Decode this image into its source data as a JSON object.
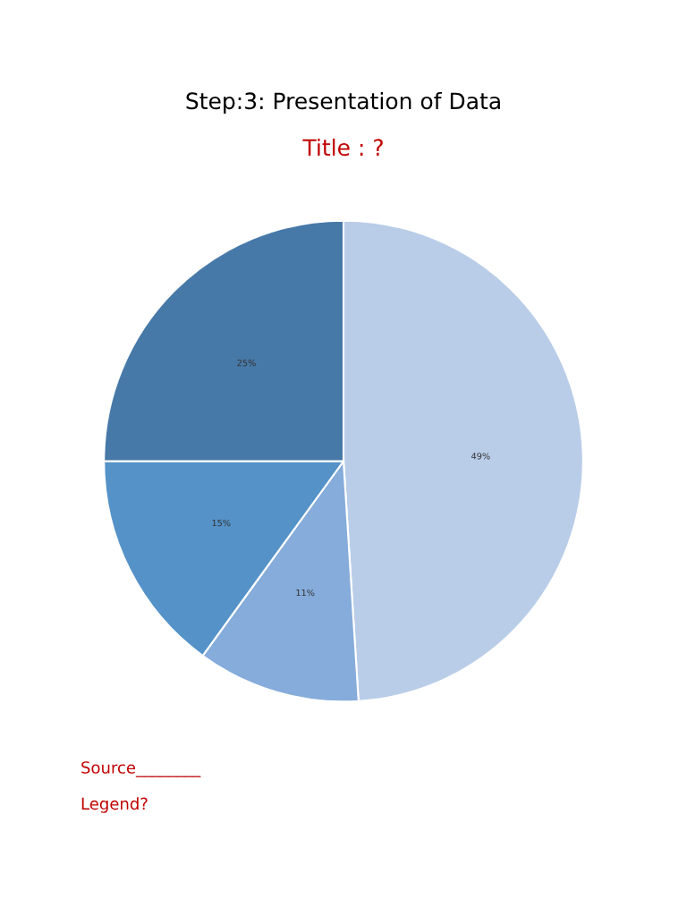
{
  "chart_data": {
    "type": "pie",
    "title": "Step:3: Presentation of Data",
    "subtitle": "Title : ?",
    "categories": [
      null,
      null,
      null,
      null
    ],
    "values": [
      49,
      11,
      15,
      25
    ],
    "colors": [
      "#b9cde8",
      "#85acda",
      "#5592c8",
      "#4779a8"
    ],
    "value_labels": [
      "49%",
      "11%",
      "15%",
      "25%"
    ],
    "annotations": [
      "Source________",
      "Legend?"
    ]
  }
}
